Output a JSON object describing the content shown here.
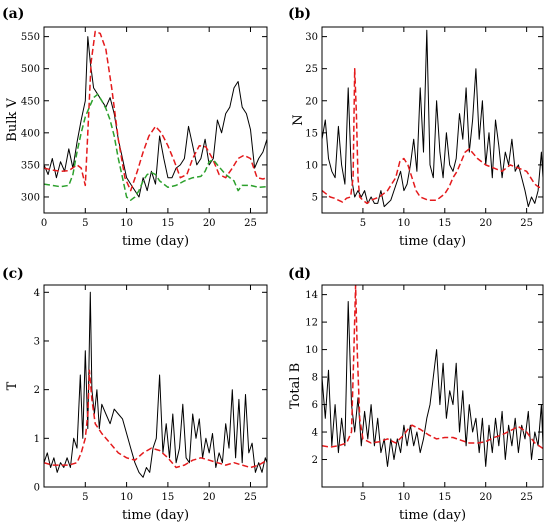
{
  "chart_data": [
    {
      "type": "line",
      "panel_label": "(a)",
      "xlabel": "time (day)",
      "ylabel": "Bulk V",
      "xlim": [
        0,
        27
      ],
      "ylim": [
        275,
        565
      ],
      "xticks": [
        0,
        5,
        10,
        15,
        20,
        25
      ],
      "yticks": [
        300,
        350,
        400,
        450,
        500,
        550
      ],
      "series": [
        {
          "color": "#000000",
          "style": "solid",
          "x": [
            0,
            0.5,
            1,
            1.5,
            2,
            2.5,
            3,
            3.5,
            4,
            4.5,
            5,
            5.3,
            5.6,
            6,
            6.5,
            7,
            7.5,
            8,
            8.5,
            9,
            9.5,
            10,
            10.5,
            11,
            11.5,
            12,
            12.5,
            13,
            13.5,
            14,
            14.5,
            15,
            15.5,
            16,
            16.5,
            17,
            17.5,
            18,
            18.5,
            19,
            19.5,
            20,
            20.5,
            21,
            21.5,
            22,
            22.5,
            23,
            23.5,
            24,
            24.5,
            25,
            25.5,
            26,
            26.5,
            27
          ],
          "y": [
            350,
            335,
            360,
            330,
            355,
            340,
            375,
            345,
            385,
            420,
            450,
            550,
            510,
            470,
            460,
            450,
            440,
            455,
            430,
            390,
            360,
            330,
            320,
            310,
            300,
            330,
            310,
            340,
            320,
            395,
            360,
            330,
            330,
            345,
            350,
            360,
            410,
            380,
            350,
            360,
            390,
            350,
            360,
            420,
            400,
            430,
            440,
            470,
            480,
            440,
            430,
            405,
            345,
            360,
            370,
            390
          ]
        },
        {
          "color": "#e41a1c",
          "style": "dashed",
          "x": [
            0,
            1,
            2,
            3,
            4,
            4.5,
            5,
            5.3,
            5.7,
            6.2,
            6.8,
            7.5,
            8.2,
            9,
            9.8,
            10.5,
            11.3,
            12,
            12.7,
            13.5,
            14.2,
            15,
            15.8,
            16.5,
            17.3,
            18,
            18.8,
            19.6,
            20.4,
            21.2,
            22,
            22.8,
            23.5,
            24.2,
            25,
            25.8,
            26.5,
            27
          ],
          "y": [
            345,
            342,
            340,
            341,
            350,
            345,
            318,
            400,
            510,
            558,
            555,
            530,
            470,
            390,
            330,
            310,
            340,
            370,
            395,
            410,
            400,
            380,
            355,
            330,
            335,
            360,
            380,
            378,
            360,
            335,
            330,
            345,
            360,
            365,
            360,
            330,
            328,
            330
          ]
        },
        {
          "color": "#2ca02c",
          "style": "dashed",
          "x": [
            0,
            1,
            2,
            3,
            3.5,
            4,
            4.5,
            5,
            5.5,
            6,
            6.5,
            7,
            7.5,
            8,
            8.5,
            9,
            9.5,
            10,
            10.5,
            11,
            11.5,
            12,
            12.5,
            13,
            13.5,
            14,
            15,
            16,
            17,
            18,
            19,
            19.5,
            20,
            20.5,
            21,
            22,
            23,
            23.5,
            24,
            25,
            26,
            27
          ],
          "y": [
            320,
            318,
            316,
            318,
            335,
            370,
            400,
            425,
            440,
            455,
            460,
            450,
            438,
            420,
            395,
            360,
            330,
            300,
            295,
            300,
            310,
            325,
            335,
            338,
            335,
            325,
            315,
            318,
            325,
            330,
            332,
            340,
            355,
            358,
            350,
            335,
            325,
            310,
            318,
            318,
            315,
            316
          ]
        }
      ]
    },
    {
      "type": "line",
      "panel_label": "(b)",
      "xlabel": "time (day)",
      "ylabel": "N",
      "xlim": [
        0,
        27
      ],
      "ylim": [
        2.5,
        31.5
      ],
      "xticks": [
        5,
        10,
        15,
        20,
        25
      ],
      "yticks": [
        5,
        10,
        15,
        20,
        25,
        30
      ],
      "series": [
        {
          "color": "#000000",
          "style": "solid",
          "x": [
            0,
            0.4,
            0.8,
            1.2,
            1.6,
            2,
            2.4,
            2.8,
            3.2,
            3.6,
            4,
            4.4,
            4.8,
            5.2,
            5.6,
            6,
            6.4,
            6.8,
            7.2,
            7.6,
            8,
            8.4,
            8.8,
            9.2,
            9.6,
            10,
            10.4,
            10.8,
            11.2,
            11.6,
            12,
            12.4,
            12.8,
            13.2,
            13.6,
            14,
            14.4,
            14.8,
            15.2,
            15.6,
            16,
            16.4,
            16.8,
            17.2,
            17.6,
            18,
            18.4,
            18.8,
            19.2,
            19.6,
            20,
            20.4,
            20.8,
            21.2,
            21.6,
            22,
            22.4,
            22.8,
            23.2,
            23.6,
            24,
            24.4,
            24.8,
            25.2,
            25.6,
            26,
            26.4,
            26.8,
            27
          ],
          "y": [
            14,
            17,
            11,
            9,
            8,
            16,
            10,
            7,
            22,
            8,
            5,
            6,
            5,
            6,
            4,
            5,
            4,
            4,
            6,
            3.5,
            4,
            4.5,
            6,
            7.5,
            9,
            6,
            7,
            10,
            14,
            9,
            22,
            12,
            31,
            10,
            8,
            20,
            12,
            8,
            15,
            10,
            9,
            11,
            18,
            14,
            22,
            12,
            17,
            25,
            14,
            20,
            10,
            15,
            8,
            17,
            13,
            8,
            12,
            10,
            14,
            9,
            10,
            8,
            6,
            3.5,
            5,
            4,
            6,
            12,
            8
          ]
        },
        {
          "color": "#e41a1c",
          "style": "dashed",
          "x": [
            0,
            0.5,
            1,
            1.5,
            2,
            2.5,
            3,
            3.5,
            3.8,
            4,
            4.2,
            4.4,
            4.6,
            5,
            5.5,
            6,
            7,
            8,
            9,
            9.5,
            10,
            10.5,
            11,
            11.5,
            12,
            13,
            14,
            15,
            15.5,
            16,
            16.5,
            17,
            17.5,
            18,
            19,
            20,
            21,
            22,
            23,
            24,
            25,
            25.5,
            26,
            26.5,
            27
          ],
          "y": [
            6,
            5.5,
            5,
            4.8,
            4.5,
            4.2,
            4.8,
            5,
            8,
            25,
            18,
            8,
            5,
            4.5,
            4,
            4.5,
            5,
            6,
            8,
            10.5,
            11,
            10,
            8,
            6,
            5,
            4.5,
            4.5,
            5.5,
            6.5,
            8,
            9,
            10.5,
            12,
            12.5,
            11,
            10,
            9.5,
            9,
            10,
            9.5,
            9,
            8,
            7,
            6.5,
            6.5
          ]
        }
      ]
    },
    {
      "type": "line",
      "panel_label": "(c)",
      "xlabel": "time (day)",
      "ylabel": "T",
      "xlim": [
        0,
        27
      ],
      "ylim": [
        0,
        4.15
      ],
      "xticks": [
        5,
        10,
        15,
        20,
        25
      ],
      "yticks": [
        0,
        1,
        2,
        3,
        4
      ],
      "series": [
        {
          "color": "#000000",
          "style": "solid",
          "x": [
            0,
            0.4,
            0.8,
            1.2,
            1.6,
            2,
            2.4,
            2.8,
            3.2,
            3.6,
            4,
            4.4,
            4.7,
            5,
            5.3,
            5.6,
            5.8,
            6.1,
            6.4,
            6.7,
            7,
            7.5,
            8,
            8.5,
            9,
            9.5,
            10,
            10.5,
            11,
            11.5,
            12,
            12.4,
            12.8,
            13.2,
            13.6,
            14,
            14.4,
            14.8,
            15.2,
            15.6,
            16,
            16.4,
            16.8,
            17.2,
            17.6,
            18,
            18.4,
            18.8,
            19.2,
            19.6,
            20,
            20.4,
            20.8,
            21.2,
            21.6,
            22,
            22.4,
            22.8,
            23.2,
            23.6,
            24,
            24.4,
            24.8,
            25.2,
            25.6,
            26,
            26.4,
            26.8,
            27
          ],
          "y": [
            0.5,
            0.7,
            0.4,
            0.6,
            0.3,
            0.5,
            0.4,
            0.6,
            0.4,
            1.0,
            0.8,
            2.3,
            1.0,
            2.8,
            1.2,
            4.0,
            2.0,
            1.5,
            2.0,
            1.2,
            1.7,
            1.5,
            1.3,
            1.6,
            1.5,
            1.4,
            1.1,
            0.8,
            0.5,
            0.3,
            0.2,
            0.4,
            0.3,
            0.8,
            1.0,
            2.3,
            0.7,
            1.3,
            0.6,
            1.5,
            0.5,
            0.8,
            1.7,
            0.6,
            0.5,
            1.5,
            1.0,
            1.4,
            0.6,
            1.0,
            0.7,
            1.1,
            0.4,
            0.7,
            0.5,
            1.3,
            0.8,
            2.0,
            0.6,
            1.8,
            0.5,
            1.9,
            0.7,
            0.9,
            0.3,
            0.5,
            0.3,
            0.6,
            0.5
          ]
        },
        {
          "color": "#e41a1c",
          "style": "dashed",
          "x": [
            0,
            1,
            2,
            3,
            4,
            4.5,
            5,
            5.3,
            5.5,
            5.8,
            6.2,
            7,
            8,
            9,
            10,
            11,
            12,
            13,
            14,
            15,
            16,
            17,
            18,
            19,
            20,
            21,
            22,
            23,
            24,
            25,
            26,
            27
          ],
          "y": [
            0.5,
            0.45,
            0.45,
            0.45,
            0.5,
            0.7,
            1.0,
            1.5,
            2.4,
            1.8,
            1.3,
            1.1,
            0.9,
            0.7,
            0.6,
            0.55,
            0.7,
            0.8,
            0.75,
            0.6,
            0.4,
            0.45,
            0.55,
            0.6,
            0.55,
            0.5,
            0.45,
            0.5,
            0.45,
            0.4,
            0.45,
            0.55
          ]
        }
      ]
    },
    {
      "type": "line",
      "panel_label": "(d)",
      "xlabel": "time (day)",
      "ylabel": "Total B",
      "xlim": [
        0,
        27
      ],
      "ylim": [
        0,
        14.7
      ],
      "xticks": [
        5,
        10,
        15,
        20,
        25
      ],
      "yticks": [
        2,
        4,
        6,
        8,
        10,
        12,
        14
      ],
      "series": [
        {
          "color": "#000000",
          "style": "solid",
          "x": [
            0,
            0.4,
            0.8,
            1.2,
            1.6,
            2,
            2.4,
            2.8,
            3.2,
            3.6,
            4,
            4.4,
            4.8,
            5.2,
            5.6,
            6,
            6.4,
            6.8,
            7.2,
            7.6,
            8,
            8.4,
            8.8,
            9.2,
            9.6,
            10,
            10.4,
            10.8,
            11.2,
            11.6,
            12,
            12.4,
            12.8,
            13.2,
            13.6,
            14,
            14.4,
            14.8,
            15.2,
            15.6,
            16,
            16.4,
            16.8,
            17.2,
            17.6,
            18,
            18.4,
            18.8,
            19.2,
            19.6,
            20,
            20.4,
            20.8,
            21.2,
            21.6,
            22,
            22.4,
            22.8,
            23.2,
            23.6,
            24,
            24.4,
            24.8,
            25.2,
            25.6,
            26,
            26.4,
            26.8,
            27
          ],
          "y": [
            8,
            5,
            8.5,
            3,
            6,
            2.5,
            5,
            3,
            13.5,
            6,
            4,
            6.5,
            3,
            5.5,
            3.5,
            6,
            3,
            5,
            2.5,
            3.5,
            1.5,
            3.5,
            2,
            3.5,
            2.5,
            4.5,
            3,
            4.5,
            3,
            4,
            2.5,
            3.5,
            5,
            6,
            8,
            10,
            6,
            9,
            5,
            7,
            6,
            9,
            4,
            7,
            3,
            6,
            4,
            5,
            2.5,
            5,
            1.5,
            4.5,
            2.5,
            5,
            3,
            5.5,
            2,
            4.5,
            3,
            5,
            2.5,
            4.5,
            3.5,
            5.5,
            2,
            4,
            3,
            6,
            3
          ]
        },
        {
          "color": "#e41a1c",
          "style": "dashed",
          "x": [
            0,
            1,
            2,
            3,
            3.6,
            3.9,
            4.1,
            4.3,
            4.6,
            5,
            6,
            7,
            8,
            9,
            10,
            10.5,
            11,
            12,
            13,
            14,
            15,
            16,
            17,
            18,
            19,
            20,
            21,
            22,
            23,
            24,
            25,
            26,
            27
          ],
          "y": [
            3,
            2.9,
            3,
            3.2,
            4,
            10,
            14.7,
            10,
            5,
            3.5,
            3.2,
            3.3,
            3.5,
            3.2,
            3.8,
            4.2,
            4.5,
            4.2,
            3.8,
            3.5,
            3.6,
            3.6,
            3.4,
            3.2,
            3.2,
            3.3,
            3.6,
            3.8,
            4.1,
            4.4,
            4.0,
            3.2,
            2.8
          ]
        }
      ]
    }
  ]
}
